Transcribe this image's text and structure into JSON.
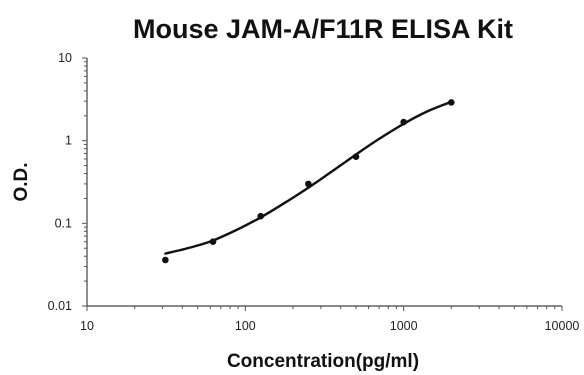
{
  "chart_data": {
    "type": "scatter",
    "title": "Mouse JAM-A/F11R ELISA Kit",
    "xlabel": "Concentration(pg/ml)",
    "ylabel": "O.D.",
    "x_scale": "log",
    "y_scale": "log",
    "xlim": [
      10,
      10000
    ],
    "ylim": [
      0.01,
      10
    ],
    "x_ticks": [
      "10",
      "100",
      "1000",
      "10000"
    ],
    "y_ticks": [
      "0.01",
      "0.1",
      "1",
      "10"
    ],
    "grid": false,
    "legend": "none",
    "series": [
      {
        "points": [
          {
            "x": 31.25,
            "y": 0.036
          },
          {
            "x": 62.5,
            "y": 0.06
          },
          {
            "x": 125,
            "y": 0.122
          },
          {
            "x": 250,
            "y": 0.3
          },
          {
            "x": 500,
            "y": 0.64
          },
          {
            "x": 1000,
            "y": 1.68
          },
          {
            "x": 2000,
            "y": 2.9
          }
        ],
        "fit_curve": [
          {
            "x": 31.25,
            "y": 0.043
          },
          {
            "x": 45,
            "y": 0.051
          },
          {
            "x": 62.5,
            "y": 0.062
          },
          {
            "x": 90,
            "y": 0.085
          },
          {
            "x": 125,
            "y": 0.118
          },
          {
            "x": 180,
            "y": 0.18
          },
          {
            "x": 250,
            "y": 0.27
          },
          {
            "x": 350,
            "y": 0.42
          },
          {
            "x": 500,
            "y": 0.68
          },
          {
            "x": 700,
            "y": 1.05
          },
          {
            "x": 1000,
            "y": 1.6
          },
          {
            "x": 1400,
            "y": 2.25
          },
          {
            "x": 2000,
            "y": 2.95
          }
        ]
      }
    ]
  }
}
